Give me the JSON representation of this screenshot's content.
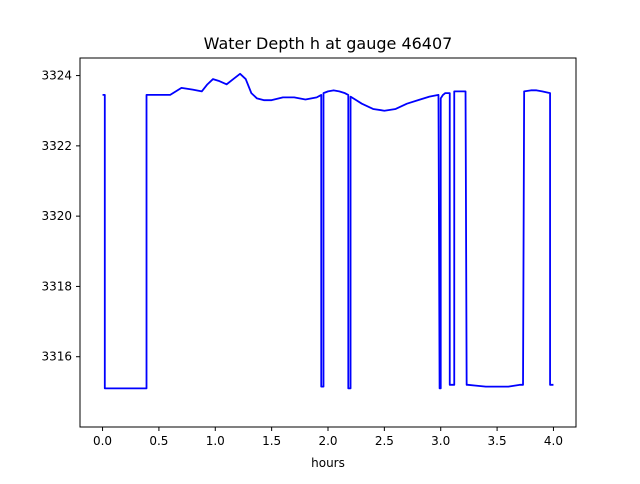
{
  "chart_data": {
    "type": "line",
    "title": "Water Depth h at gauge 46407",
    "xlabel": "hours",
    "ylabel": "",
    "xlim": [
      -0.2,
      4.2
    ],
    "ylim": [
      3314.0,
      3324.5
    ],
    "xticks": [
      0.0,
      0.5,
      1.0,
      1.5,
      2.0,
      2.5,
      3.0,
      3.5,
      4.0
    ],
    "xtick_labels": [
      "0.0",
      "0.5",
      "1.0",
      "1.5",
      "2.0",
      "2.5",
      "3.0",
      "3.5",
      "4.0"
    ],
    "yticks": [
      3316,
      3318,
      3320,
      3322,
      3324
    ],
    "ytick_labels": [
      "3316",
      "3318",
      "3320",
      "3322",
      "3324"
    ],
    "grid": false,
    "series": [
      {
        "color": "#0000ff",
        "x": [
          0.0,
          0.02,
          0.02,
          0.39,
          0.39,
          0.5,
          0.6,
          0.65,
          0.7,
          0.8,
          0.88,
          0.93,
          0.98,
          1.03,
          1.1,
          1.16,
          1.22,
          1.27,
          1.32,
          1.37,
          1.43,
          1.5,
          1.6,
          1.7,
          1.8,
          1.9,
          1.94,
          1.94,
          1.96,
          1.96,
          2.0,
          2.05,
          2.1,
          2.15,
          2.18,
          2.18,
          2.2,
          2.2,
          2.25,
          2.3,
          2.4,
          2.5,
          2.6,
          2.7,
          2.8,
          2.9,
          2.98,
          2.99,
          3.0,
          3.0,
          3.01,
          3.02,
          3.04,
          3.08,
          3.08,
          3.12,
          3.12,
          3.14,
          3.14,
          3.22,
          3.23,
          3.24,
          3.3,
          3.4,
          3.5,
          3.6,
          3.7,
          3.73,
          3.74,
          3.8,
          3.85,
          3.9,
          3.97,
          3.97,
          4.0
        ],
        "y": [
          3323.45,
          3323.45,
          3315.1,
          3315.1,
          3323.45,
          3323.45,
          3323.45,
          3323.55,
          3323.65,
          3323.6,
          3323.55,
          3323.75,
          3323.9,
          3323.85,
          3323.75,
          3323.9,
          3324.05,
          3323.9,
          3323.5,
          3323.35,
          3323.3,
          3323.3,
          3323.38,
          3323.38,
          3323.32,
          3323.38,
          3323.45,
          3315.15,
          3315.15,
          3323.5,
          3323.55,
          3323.58,
          3323.55,
          3323.5,
          3323.45,
          3315.1,
          3315.1,
          3323.4,
          3323.3,
          3323.2,
          3323.05,
          3323.0,
          3323.05,
          3323.2,
          3323.3,
          3323.4,
          3323.45,
          3315.1,
          3315.1,
          3323.35,
          3323.4,
          3323.45,
          3323.5,
          3323.5,
          3315.2,
          3315.2,
          3323.55,
          3323.55,
          3323.55,
          3323.55,
          3315.2,
          3315.2,
          3315.18,
          3315.15,
          3315.15,
          3315.15,
          3315.2,
          3315.2,
          3323.55,
          3323.58,
          3323.58,
          3323.55,
          3323.5,
          3315.2,
          3315.2
        ]
      }
    ]
  }
}
